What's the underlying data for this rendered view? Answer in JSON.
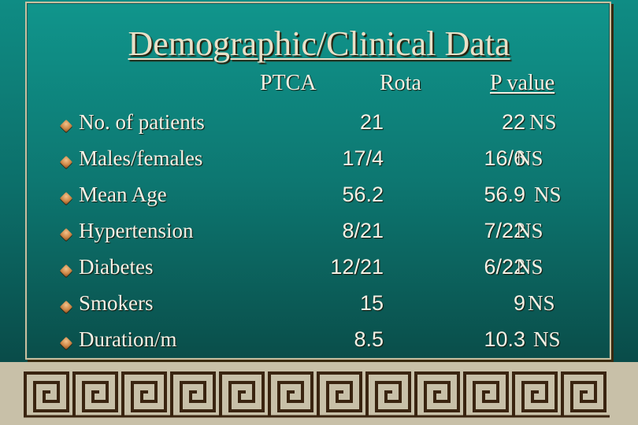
{
  "slide": {
    "title": "Demographic/Clinical Data",
    "colors": {
      "background": "#0d7771",
      "text": "#f3f1e6",
      "title": "#e8e0c8",
      "bullet": "#d08a4a",
      "border_band": "#c8c0a8",
      "meander": "#3a2410"
    },
    "bullet_icon": "diamond-bullet-icon"
  },
  "columns": {
    "ptca": "PTCA",
    "rota": "Rota",
    "pvalue": "P value"
  },
  "rows": [
    {
      "label": "No. of patients",
      "ptca": "21",
      "rota": "22",
      "p": "NS"
    },
    {
      "label": "Males/females",
      "ptca": "17/4",
      "rota": "16/6",
      "p": "NS"
    },
    {
      "label": "Mean Age",
      "ptca": "56.2",
      "rota": "56.9",
      "p": "NS"
    },
    {
      "label": "Hypertension",
      "ptca": "8/21",
      "rota": "7/22",
      "p": "NS"
    },
    {
      "label": "Diabetes",
      "ptca": "12/21",
      "rota": "6/22",
      "p": "NS"
    },
    {
      "label": "Smokers",
      "ptca": "15",
      "rota": "9",
      "p": "NS"
    },
    {
      "label": "Duration/m",
      "ptca": "8.5",
      "rota": "10.3",
      "p": "NS"
    }
  ]
}
